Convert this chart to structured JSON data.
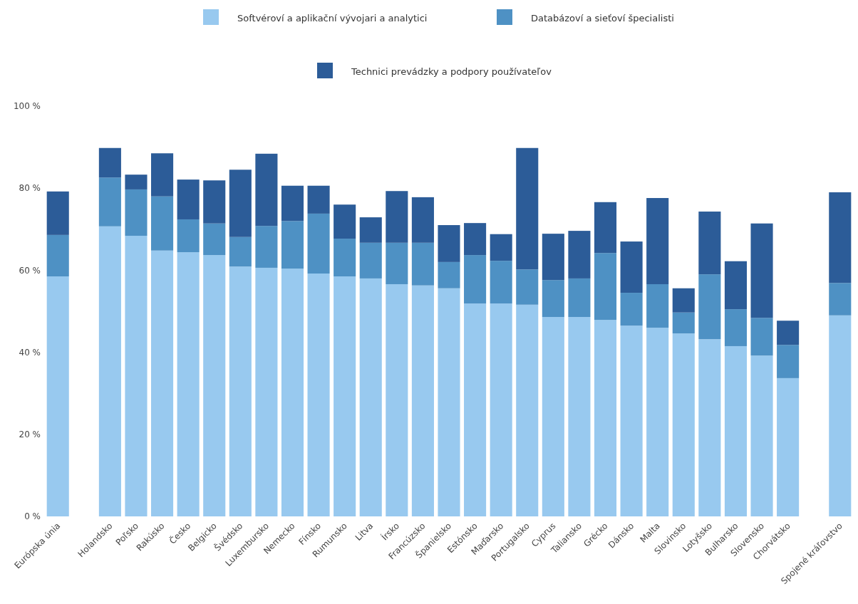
{
  "chart_data": {
    "type": "bar",
    "stacked": true,
    "legend": "top",
    "categories": [
      "Európska únia",
      null,
      "Holandsko",
      "Poľsko",
      "Rakúsko",
      "Česko",
      "Belgicko",
      "Švédsko",
      "Luxembursko",
      "Nemecko",
      "Fínsko",
      "Rumunsko",
      "Litva",
      "Írsko",
      "Francúzsko",
      "Španielsko",
      "Estónsko",
      "Maďarsko",
      "Portugalsko",
      "Cyprus",
      "Taliansko",
      "Grécko",
      "Dánsko",
      "Malta",
      "Slovinsko",
      "Lotyšsko",
      "Bulharsko",
      "Slovensko",
      "Chorvátsko",
      null,
      "Spojené kráľovstvo"
    ],
    "ylim": [
      0,
      100
    ],
    "yticks": [
      {
        "value": 0,
        "label": "0 %"
      },
      {
        "value": 20,
        "label": "20 %"
      },
      {
        "value": 40,
        "label": "40 %"
      },
      {
        "value": 60,
        "label": "60 %"
      },
      {
        "value": 80,
        "label": "80 %"
      },
      {
        "value": 100,
        "label": "100 %"
      }
    ],
    "series": [
      {
        "name": "Softvéroví a aplikační vývojari a analytici",
        "color": "#98c9ef",
        "values": [
          58.5,
          null,
          70.7,
          68.4,
          64.8,
          64.4,
          63.7,
          60.9,
          60.6,
          60.4,
          59.2,
          58.5,
          58.0,
          56.6,
          56.3,
          55.6,
          51.9,
          51.9,
          51.6,
          48.6,
          48.6,
          47.9,
          46.5,
          46.0,
          44.6,
          43.2,
          41.5,
          39.2,
          33.7,
          null,
          49.0
        ]
      },
      {
        "name": "Databázoví a sieťoví špecialisti",
        "color": "#4e91c4",
        "values": [
          10.1,
          null,
          11.9,
          11.3,
          13.2,
          8.0,
          7.7,
          7.2,
          10.2,
          11.6,
          14.6,
          9.2,
          8.7,
          10.1,
          10.4,
          6.4,
          11.8,
          10.4,
          8.6,
          9.0,
          9.4,
          16.3,
          8.0,
          10.6,
          5.1,
          15.8,
          9.0,
          9.2,
          8.1,
          null,
          7.9
        ]
      },
      {
        "name": "Technici prevádzky a podpory používateľov",
        "color": "#2c5c98",
        "values": [
          10.6,
          null,
          7.2,
          3.6,
          10.5,
          9.7,
          10.5,
          16.4,
          17.6,
          8.6,
          6.8,
          8.3,
          6.2,
          12.6,
          11.1,
          9.0,
          7.8,
          6.5,
          29.6,
          11.3,
          11.6,
          12.4,
          12.5,
          21.0,
          5.9,
          15.3,
          11.7,
          23.0,
          5.9,
          null,
          22.1
        ]
      }
    ]
  }
}
